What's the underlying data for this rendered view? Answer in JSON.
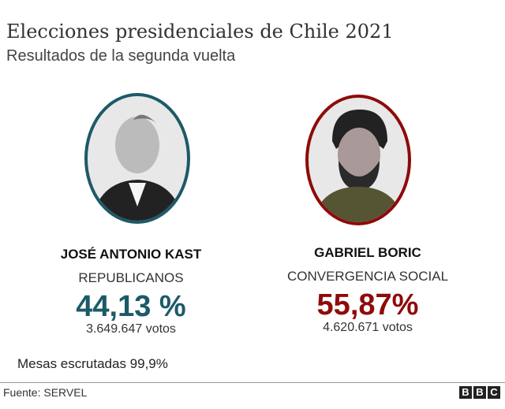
{
  "title": "Elecciones presidenciales de Chile 2021",
  "subtitle": "Resultados de la segunda vuelta",
  "candidates": [
    {
      "name": "JOSÉ ANTONIO KAST",
      "party": "REPUBLICANOS",
      "percent": "44,13 %",
      "votes": "3.649.647 votos",
      "color": "#1c5a68"
    },
    {
      "name": "GABRIEL BORIC",
      "party": "CONVERGENCIA SOCIAL",
      "percent": "55,87%",
      "votes": "4.620.671 votos",
      "color": "#8e0b0b"
    }
  ],
  "mesas": "Mesas escrutadas 99,9%",
  "source": "Fuente: SERVEL",
  "logo": "BBC"
}
